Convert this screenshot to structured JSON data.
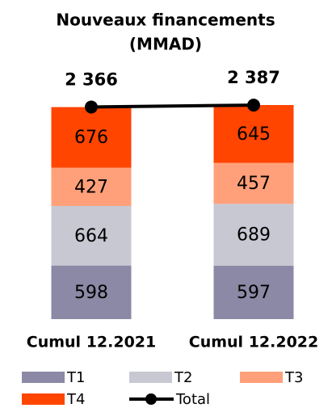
{
  "chart_data": {
    "type": "bar",
    "stacked": true,
    "title": [
      "Nouveaux financements",
      "(MMAD)"
    ],
    "categories": [
      "Cumul 12.2021",
      "Cumul 12.2022"
    ],
    "series": [
      {
        "name": "T1",
        "color": "#8b89a5",
        "values": [
          598,
          597
        ]
      },
      {
        "name": "T2",
        "color": "#c8c8d3",
        "values": [
          664,
          689
        ]
      },
      {
        "name": "T3",
        "color": "#ffa07a",
        "values": [
          427,
          457
        ]
      },
      {
        "name": "T4",
        "color": "#ff4500",
        "values": [
          676,
          645
        ]
      }
    ],
    "total": {
      "name": "Total",
      "color": "#000000",
      "values": [
        2366,
        2387
      ],
      "value_labels": [
        "2 366",
        "2 387"
      ]
    }
  }
}
